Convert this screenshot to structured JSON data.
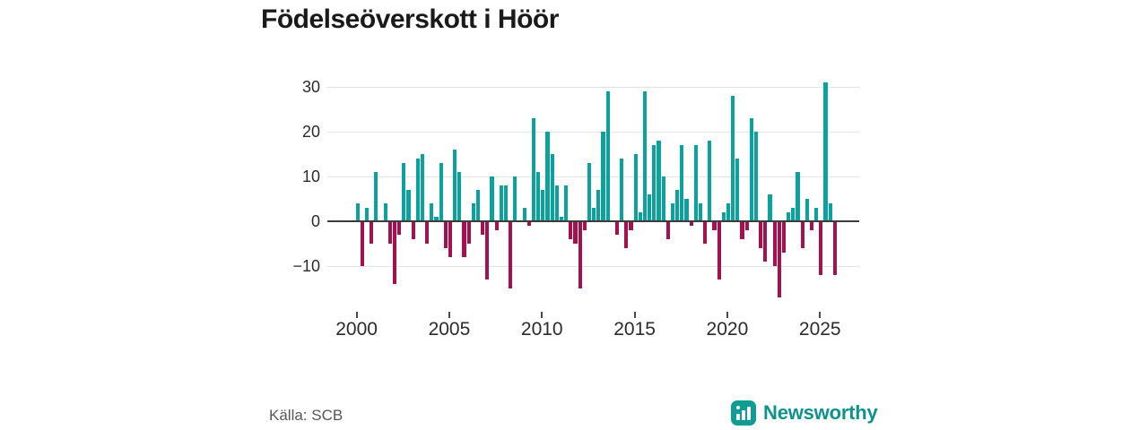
{
  "title": "Födelseöverskott i Höör",
  "source": "Källa: SCB",
  "branding": {
    "name": "Newsworthy",
    "icon": "bar-chart-logo",
    "color": "#0e938c"
  },
  "chart_data": {
    "type": "bar",
    "title": "Födelseöverskott i Höör",
    "frequency": "quarterly",
    "start_year": 2000,
    "quarters_per_year": 4,
    "series": [
      {
        "name": "Födelseöverskott",
        "values": [
          4,
          -10,
          3,
          -5,
          11,
          0,
          4,
          -5,
          -14,
          -3,
          13,
          7,
          -4,
          14,
          15,
          -5,
          4,
          1,
          13,
          -6,
          -8,
          16,
          11,
          -8,
          -5,
          4,
          7,
          -3,
          -13,
          10,
          -2,
          8,
          8,
          -15,
          10,
          0,
          3,
          -1,
          23,
          11,
          7,
          20,
          15,
          8,
          1,
          8,
          -4,
          -5,
          -15,
          -2,
          13,
          3,
          7,
          20,
          29,
          0,
          -3,
          14,
          -6,
          -2,
          15,
          2,
          29,
          6,
          17,
          18,
          10,
          -4,
          4,
          7,
          17,
          5,
          -1,
          17,
          4,
          -5,
          18,
          -2,
          -13,
          2,
          4,
          28,
          14,
          -4,
          -2,
          23,
          20,
          -6,
          -9,
          6,
          -10,
          -17,
          -7,
          2,
          3,
          11,
          -6,
          5,
          -2,
          3,
          -12,
          31,
          4,
          -12
        ]
      }
    ],
    "x_tick_years": [
      2000,
      2005,
      2010,
      2015,
      2020,
      2025
    ],
    "y_ticks": [
      30,
      20,
      10,
      0,
      -10
    ],
    "y_tick_labels": [
      "30",
      "20",
      "10",
      "0",
      "−10"
    ],
    "ylim": [
      -18,
      32
    ],
    "grid": "horizontal",
    "legend": "none",
    "colors": {
      "positive": "#0ba29d",
      "negative": "#a4114e"
    }
  }
}
